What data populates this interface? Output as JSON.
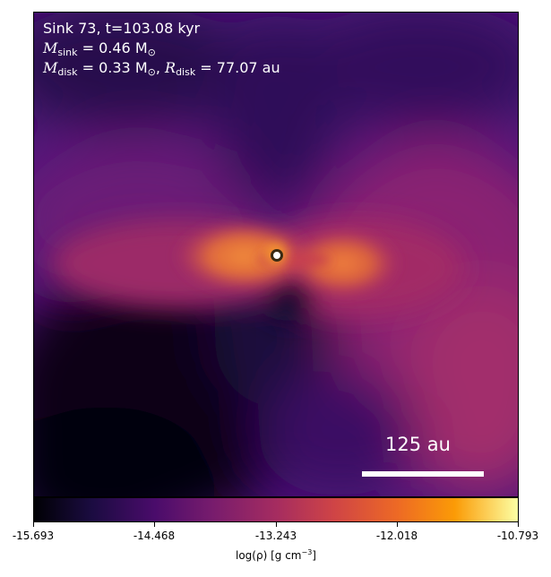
{
  "title": {
    "line1": "Sink 73, t=103.08 kyr",
    "msink_symbol": "M",
    "msink_sub": "sink",
    "msink_value": " = 0.46 M",
    "msink_unit_sub": "⊙",
    "mdisk_symbol": "M",
    "mdisk_sub": "disk",
    "mdisk_value": " = 0.33 M",
    "mdisk_unit_sub": "⊙",
    "rdisk_prefix": ", ",
    "rdisk_symbol": "R",
    "rdisk_sub": "disk",
    "rdisk_value": " = 77.07 au"
  },
  "scale_bar": {
    "label": "125 au"
  },
  "colorbar": {
    "colormap": "inferno",
    "ticks": [
      "-15.693",
      "-14.468",
      "-13.243",
      "-12.018",
      "-10.793"
    ],
    "label_prefix": "log(ρ) [g cm",
    "label_exp": "−3",
    "label_suffix": "]"
  }
}
